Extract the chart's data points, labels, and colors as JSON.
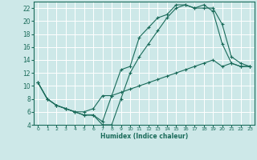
{
  "title": "",
  "xlabel": "Humidex (Indice chaleur)",
  "ylabel": "",
  "bg_color": "#cde8e8",
  "grid_color": "#ffffff",
  "line_color": "#1a6b5a",
  "xlim": [
    -0.5,
    23.5
  ],
  "ylim": [
    4,
    23
  ],
  "xticks": [
    0,
    1,
    2,
    3,
    4,
    5,
    6,
    7,
    8,
    9,
    10,
    11,
    12,
    13,
    14,
    15,
    16,
    17,
    18,
    19,
    20,
    21,
    22,
    23
  ],
  "yticks": [
    4,
    6,
    8,
    10,
    12,
    14,
    16,
    18,
    20,
    22
  ],
  "line1_x": [
    0,
    1,
    2,
    3,
    4,
    5,
    6,
    7,
    8,
    9,
    10,
    11,
    12,
    13,
    14,
    15,
    16,
    17,
    18,
    19,
    20,
    21,
    22,
    23
  ],
  "line1_y": [
    10.5,
    8.0,
    7.0,
    6.5,
    6.0,
    5.5,
    5.5,
    4.5,
    8.5,
    12.5,
    13.0,
    17.5,
    19.0,
    20.5,
    21.0,
    22.5,
    22.5,
    22.0,
    22.0,
    22.0,
    19.5,
    14.5,
    13.5,
    13.0
  ],
  "line2_x": [
    0,
    1,
    2,
    3,
    4,
    5,
    6,
    7,
    8,
    9,
    10,
    11,
    12,
    13,
    14,
    15,
    16,
    17,
    18,
    19,
    20,
    21,
    22,
    23
  ],
  "line2_y": [
    10.5,
    8.0,
    7.0,
    6.5,
    6.0,
    5.5,
    5.5,
    4.0,
    4.0,
    8.0,
    12.0,
    14.5,
    16.5,
    18.5,
    20.5,
    22.0,
    22.5,
    22.0,
    22.5,
    21.5,
    16.5,
    13.5,
    13.0,
    13.0
  ],
  "line3_x": [
    0,
    1,
    2,
    3,
    4,
    5,
    6,
    7,
    8,
    9,
    10,
    11,
    12,
    13,
    14,
    15,
    16,
    17,
    18,
    19,
    20,
    21,
    22,
    23
  ],
  "line3_y": [
    10.5,
    8.0,
    7.0,
    6.5,
    6.0,
    6.0,
    6.5,
    8.5,
    8.5,
    9.0,
    9.5,
    10.0,
    10.5,
    11.0,
    11.5,
    12.0,
    12.5,
    13.0,
    13.5,
    14.0,
    13.0,
    13.5,
    13.0,
    13.0
  ]
}
